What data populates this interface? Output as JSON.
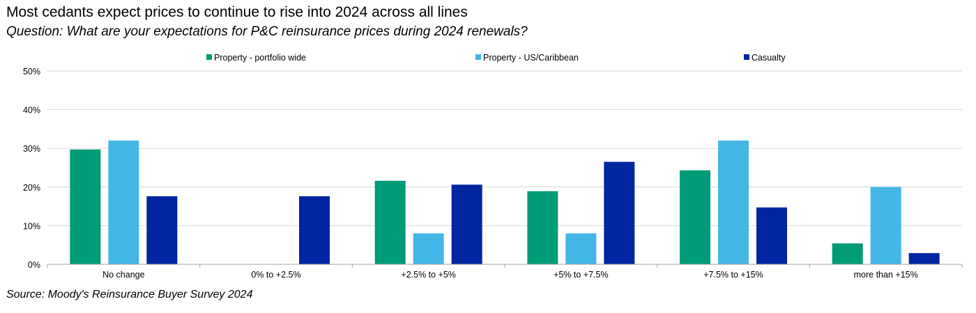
{
  "header": {
    "title": "Most cedants expect prices to continue to rise into 2024 across all lines",
    "subtitle": "Question: What are your expectations for P&C reinsurance prices during 2024 renewals?"
  },
  "footer": {
    "source": "Source: Moody's Reinsurance Buyer Survey 2024"
  },
  "chart_data": {
    "type": "bar",
    "categories": [
      "No change",
      "0% to +2.5%",
      "+2.5% to +5%",
      "+5% to +7.5%",
      "+7.5% to +15%",
      "more than +15%"
    ],
    "series": [
      {
        "name": "Property - portfolio wide",
        "color": "#009b77",
        "values": [
          29.7,
          0,
          21.6,
          18.9,
          24.3,
          5.4
        ]
      },
      {
        "name": "Property - US/Caribbean",
        "color": "#43b6e6",
        "values": [
          32.0,
          0,
          8.0,
          8.0,
          32.0,
          20.0
        ]
      },
      {
        "name": "Casualty",
        "color": "#0025a0",
        "values": [
          17.6,
          17.6,
          20.6,
          26.5,
          14.7,
          2.9
        ]
      }
    ],
    "y_ticks": [
      "0%",
      "10%",
      "20%",
      "30%",
      "40%",
      "50%"
    ],
    "ylim": [
      0,
      50
    ],
    "grid": true,
    "legend_position": "top"
  }
}
